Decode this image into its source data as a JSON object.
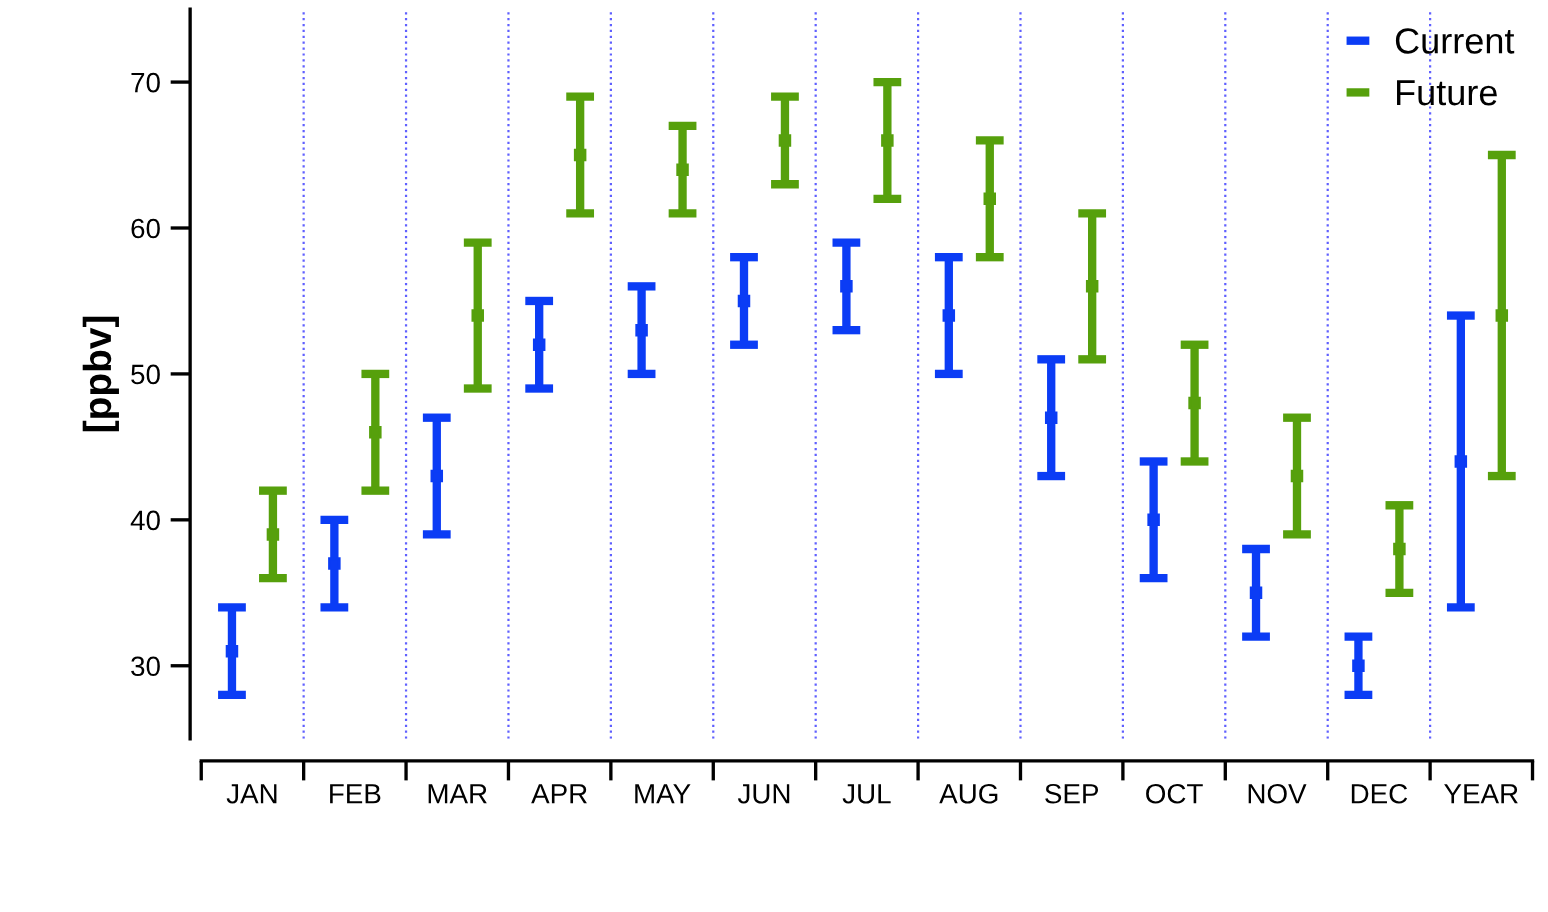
{
  "chart_data": {
    "type": "scatter",
    "ylabel": "[ppbv]",
    "categories": [
      "JAN",
      "FEB",
      "MAR",
      "APR",
      "MAY",
      "JUN",
      "JUL",
      "AUG",
      "SEP",
      "OCT",
      "NOV",
      "DEC",
      "YEAR"
    ],
    "series": [
      {
        "name": "Current",
        "color": "#0b3cf5",
        "values": [
          31,
          37,
          43,
          52,
          53,
          55,
          56,
          54,
          47,
          40,
          35,
          30,
          44
        ],
        "errors": [
          3,
          3,
          4,
          3,
          3,
          3,
          3,
          4,
          4,
          4,
          3,
          2,
          10
        ]
      },
      {
        "name": "Future",
        "color": "#56a00c",
        "values": [
          39,
          46,
          54,
          65,
          64,
          66,
          66,
          62,
          56,
          48,
          43,
          38,
          54
        ],
        "errors": [
          3,
          4,
          5,
          4,
          3,
          3,
          4,
          4,
          5,
          4,
          4,
          3,
          11
        ]
      }
    ],
    "ylim": [
      25,
      75
    ],
    "yticks": [
      30,
      40,
      50,
      60,
      70
    ],
    "grid": "x",
    "legend": "top right",
    "marker": "square"
  }
}
